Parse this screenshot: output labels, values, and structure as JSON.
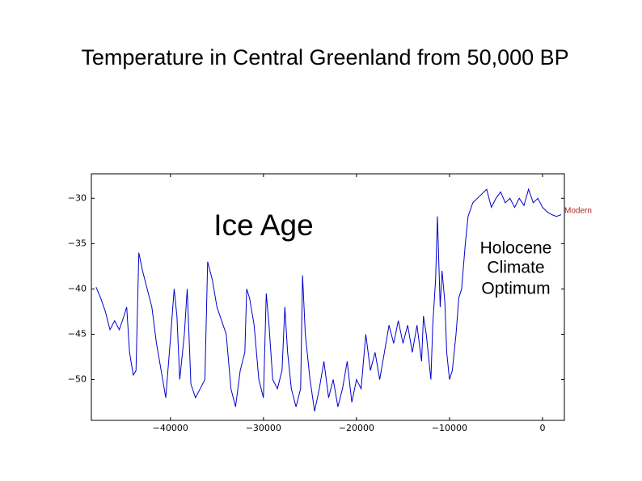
{
  "chart_data": {
    "type": "line",
    "title": "Temperature in Central Greenland from 50,000 BP",
    "annotations": {
      "ice_age": "Ice Age",
      "holocene": [
        "Holocene",
        "Climate",
        "Optimum"
      ],
      "modern": "Modern"
    },
    "xlim": [
      -48500,
      2350
    ],
    "ylim": [
      -54.5,
      -27.3
    ],
    "xticks": [
      {
        "value": -40000,
        "label": "−40000"
      },
      {
        "value": -30000,
        "label": "−30000"
      },
      {
        "value": -20000,
        "label": "−20000"
      },
      {
        "value": -10000,
        "label": "−10000"
      },
      0
    ],
    "yticks": [
      {
        "value": -30,
        "label": "−30"
      },
      {
        "value": -35,
        "label": "−35"
      },
      {
        "value": -40,
        "label": "−40"
      },
      {
        "value": -45,
        "label": "−45"
      },
      {
        "value": -50,
        "label": "−50"
      }
    ],
    "series": [
      {
        "color": "#0000cc",
        "x": [
          -48000,
          -47500,
          -47000,
          -46500,
          -46000,
          -45500,
          -45000,
          -44700,
          -44400,
          -44000,
          -43700,
          -43400,
          -43000,
          -42500,
          -42000,
          -41500,
          -41000,
          -40500,
          -40000,
          -39600,
          -39300,
          -39000,
          -38500,
          -38200,
          -37800,
          -37300,
          -36800,
          -36300,
          -36000,
          -35500,
          -35000,
          -34500,
          -34000,
          -33500,
          -33000,
          -32500,
          -32000,
          -31800,
          -31500,
          -31000,
          -30500,
          -30000,
          -29700,
          -29400,
          -29000,
          -28500,
          -28000,
          -27700,
          -27400,
          -27000,
          -26500,
          -26000,
          -25800,
          -25500,
          -25000,
          -24500,
          -24000,
          -23500,
          -23000,
          -22500,
          -22000,
          -21500,
          -21000,
          -20500,
          -20000,
          -19500,
          -19000,
          -18500,
          -18000,
          -17500,
          -17000,
          -16500,
          -16000,
          -15500,
          -15000,
          -14500,
          -14000,
          -13500,
          -13000,
          -12800,
          -12500,
          -12000,
          -11800,
          -11500,
          -11300,
          -11000,
          -10800,
          -10500,
          -10300,
          -10000,
          -9700,
          -9300,
          -9000,
          -8700,
          -8300,
          -8000,
          -7500,
          -7000,
          -6500,
          -6000,
          -5500,
          -5000,
          -4500,
          -4000,
          -3500,
          -3000,
          -2500,
          -2000,
          -1500,
          -1000,
          -500,
          0,
          500,
          1000,
          1500,
          2000
        ],
        "values": [
          -39.8,
          -41,
          -42.5,
          -44.5,
          -43.5,
          -44.5,
          -43,
          -42,
          -47,
          -49.5,
          -49,
          -36,
          -38,
          -40,
          -42,
          -46,
          -49,
          -52,
          -45.5,
          -40,
          -43,
          -50,
          -45,
          -40,
          -50.5,
          -52,
          -51,
          -50,
          -37,
          -39,
          -42,
          -43.5,
          -45,
          -51,
          -53,
          -49,
          -47,
          -40,
          -41,
          -44,
          -50,
          -52,
          -40.5,
          -44,
          -50,
          -51,
          -49,
          -42,
          -47,
          -51,
          -53,
          -51,
          -38.5,
          -45,
          -50,
          -53.5,
          -51,
          -48,
          -52,
          -50,
          -53,
          -51,
          -48,
          -52.5,
          -50,
          -51,
          -45,
          -49,
          -47,
          -50,
          -47,
          -44,
          -46,
          -43.5,
          -46,
          -44,
          -47,
          -44,
          -48,
          -43,
          -45,
          -50,
          -44,
          -39,
          -32,
          -42,
          -38,
          -41.5,
          -47,
          -50,
          -49,
          -45,
          -41,
          -40,
          -35,
          -32,
          -30.5,
          -30,
          -29.5,
          -29,
          -31,
          -30,
          -29.3,
          -30.5,
          -30,
          -31,
          -30,
          -30.8,
          -29,
          -30.5,
          -30,
          -31,
          -31.5,
          -31.8,
          -32,
          -31.8
        ]
      }
    ]
  }
}
